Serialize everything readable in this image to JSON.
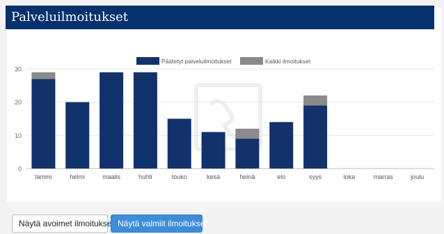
{
  "header": {
    "title": "Palveluilmoitukset"
  },
  "buttons": {
    "open_label": "Näytä avoimet ilmoitukset",
    "closed_label": "Näytä valmiit ilmoitukset"
  },
  "chart_data": {
    "type": "bar",
    "stacked": true,
    "categories": [
      "tammi",
      "helmi",
      "maalis",
      "huhti",
      "touko",
      "kesä",
      "heinä",
      "elo",
      "syys",
      "loka",
      "marras",
      "joulu"
    ],
    "series": [
      {
        "name": "Päätetyt palveluilmoitukset",
        "color": "#12326b",
        "values": [
          27,
          20,
          29,
          29,
          15,
          11,
          9,
          14,
          19,
          0,
          0,
          0
        ]
      },
      {
        "name": "Kaikki ilmoitukset",
        "color": "#8a8a8a",
        "values": [
          2,
          0,
          0,
          0,
          0,
          0,
          3,
          0,
          3,
          0,
          0,
          0
        ]
      }
    ],
    "yticks": [
      0,
      10,
      20,
      30
    ],
    "ylim": [
      0,
      30
    ],
    "grid": true,
    "legend_position": "top-center"
  }
}
